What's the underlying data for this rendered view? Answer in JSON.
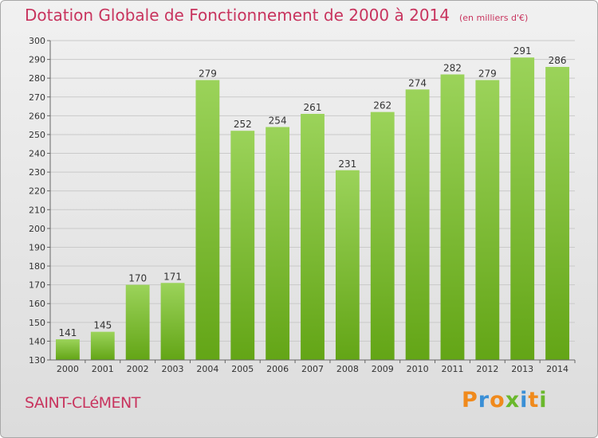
{
  "header": {
    "title": "Dotation Globale de Fonctionnement de 2000 à 2014",
    "unit": "(en milliers d'€)"
  },
  "footer": {
    "commune": "SAINT-CLéMENT",
    "brand": "Proxiti"
  },
  "colors": {
    "title": "#c8345e",
    "bar_top": "#9bd35a",
    "bar_bottom": "#63a516",
    "brand_letters": [
      "#f08a1c",
      "#3a8fd6",
      "#f08a1c",
      "#6ab82c",
      "#3a8fd6",
      "#f08a1c",
      "#6ab82c"
    ]
  },
  "chart_data": {
    "type": "bar",
    "categories": [
      "2000",
      "2001",
      "2002",
      "2003",
      "2004",
      "2005",
      "2006",
      "2007",
      "2008",
      "2009",
      "2010",
      "2011",
      "2012",
      "2013",
      "2014"
    ],
    "values": [
      141,
      145,
      170,
      171,
      279,
      252,
      254,
      261,
      231,
      262,
      274,
      282,
      279,
      291,
      286
    ],
    "title": "Dotation Globale de Fonctionnement de 2000 à 2014",
    "xlabel": "",
    "ylabel": "",
    "ylim": [
      130,
      300
    ],
    "yticks": [
      130,
      140,
      150,
      160,
      170,
      180,
      190,
      200,
      210,
      220,
      230,
      240,
      250,
      260,
      270,
      280,
      290,
      300
    ],
    "grid": true,
    "data_labels": true
  }
}
